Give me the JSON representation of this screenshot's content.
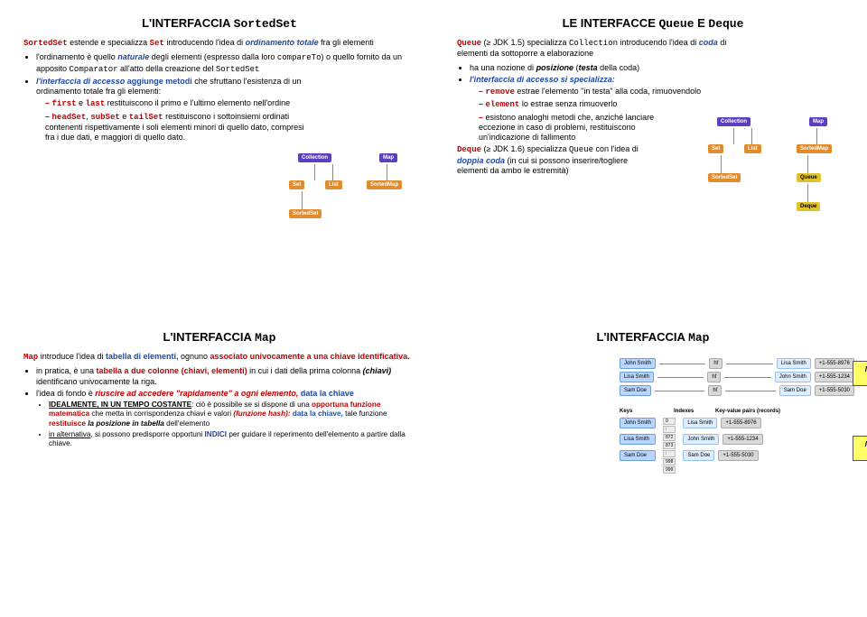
{
  "q1": {
    "title_a": "L'INTERFACCIA ",
    "title_b": "SortedSet",
    "p1_a": "SortedSet",
    "p1_b": " estende e specializza ",
    "p1_c": "Set",
    "p1_d": " introducendo l'idea di ",
    "p1_e": "ordinamento totale",
    "p1_f": " fra gli elementi",
    "b1_a": "l'ordinamento è quello ",
    "b1_b": "naturale",
    "b1_c": " degli elementi (espresso dalla loro ",
    "b1_d": "compareTo",
    "b1_e": ") o quello fornito da un apposito ",
    "b1_f": "Comparator",
    "b1_g": " all'atto della creazione del ",
    "b1_h": "SortedSet",
    "b2_a": "l'interfaccia di accesso",
    "b2_b": " aggiunge metodi ",
    "b2_c": "che sfruttano l'esistenza di un ordinamento totale fra gli elementi:",
    "d1_a": "first",
    "d1_b": " e ",
    "d1_c": "last",
    "d1_d": " restituiscono il primo e l'ultimo elemento nell'ordine",
    "d2_a": "headSet",
    "d2_b": ", ",
    "d2_c": "subSet",
    "d2_d": " e ",
    "d2_e": "tailSet",
    "d2_f": " restituiscono i sottoinsiemi ordinati contenenti rispettivamente i soli elementi minori di quello dato, compresi fra i due dati, e maggiori di quello dato.",
    "nodes": {
      "collection": "Collection",
      "map": "Map",
      "set": "Set",
      "list": "List",
      "sortedmap": "SortedMap",
      "sortedset": "SortedSet"
    },
    "col": {
      "purple": "#5b3fbf",
      "orange": "#e08b2c"
    }
  },
  "q2": {
    "title_a": "LE INTERFACCE ",
    "title_b": "Queue",
    "title_c": " E ",
    "title_d": "Deque",
    "p1_a": "Queue",
    "p1_b": " (≥ JDK 1.5) specializza ",
    "p1_c": "Collection",
    "p1_d": " introducendo l'idea di ",
    "p1_e": "coda",
    "p1_f": " di elementi da sottoporre a elaborazione",
    "b1_a": "ha una nozione di ",
    "b1_b": "posizione",
    "b1_c": " (",
    "b1_d": "testa",
    "b1_e": " della coda)",
    "b2": "l'interfaccia di accesso si specializza:",
    "d1_a": "remove",
    "d1_b": " estrae l'elemento \"in testa\" alla coda, rimuovendolo",
    "d2_a": "element",
    "d2_b": " lo estrae senza rimuoverlo",
    "d3": "esistono analoghi metodi che, anziché lanciare eccezione in caso di problemi, restituiscono un'indicazione di fallimento",
    "p2_a": "Deque",
    "p2_b": " (≥ JDK 1.6) specializza ",
    "p2_c": "Queue",
    "p2_d": " con l'idea di ",
    "p2_e": "doppia coda",
    "p2_f": " (in cui si possono inserire/togliere elementi da ambo le estremità)",
    "nodes": {
      "collection": "Collection",
      "map": "Map",
      "set": "Set",
      "list": "List",
      "sortedmap": "SortedMap",
      "sortedset": "SortedSet",
      "queue": "Queue",
      "deque": "Deque"
    }
  },
  "q3": {
    "title_a": "L'INTERFACCIA ",
    "title_b": "Map",
    "p1_a": "Map",
    "p1_b": " introduce l'idea di ",
    "p1_c": "tabella di elementi,",
    "p1_d": " ognuno ",
    "p1_e": "associato univocamente a una chiave identificativa.",
    "b1_a": "in pratica, è una ",
    "b1_b": "tabella a due colonne (chiavi, elementi)",
    "b1_c": " in cui i dati della prima colonna ",
    "b1_d": "(chiavi)",
    "b1_e": " identificano univocamente la riga.",
    "b2_a": "l'idea di fondo è ",
    "b2_b": "riuscire ad accedere \"rapidamente\" a ogni elemento,",
    "b2_c": " data la chiave",
    "s1_a": "IDEALMENTE, IN UN TEMPO COSTANTE",
    "s1_b": ": ciò è possibile se si dispone di una ",
    "s1_c": "opportuna funzione matematica",
    "s1_d": " che metta in corrispondenza chiavi e valori ",
    "s1_e": "(funzione hash):",
    "s1_f": " data la chiave,",
    "s1_g": " tale funzione ",
    "s1_h": "restituisce ",
    "s1_i": "la posizione in tabella",
    "s1_j": " dell'elemento",
    "s2_a": "in alternativa",
    "s2_b": ", si possono predisporre opportuni ",
    "s2_c": "INDICI",
    "s2_d": " per guidare il reperimento dell'elemento a partire dalla chiave."
  },
  "q4": {
    "title_a": "L'INTERFACCIA ",
    "title_b": "Map",
    "rows": [
      {
        "k": "John Smith",
        "hf": "hf",
        "v": "Lisa Smith",
        "p": "+1-555-8976"
      },
      {
        "k": "Lisa Smith",
        "hf": "hf",
        "v": "John Smith",
        "p": "+1-555-1234"
      },
      {
        "k": "Sam Doe",
        "hf": "hf",
        "v": "Sam Doe",
        "p": "+1-555-5030"
      }
    ],
    "note1": "Mappe basate su funzioni hash",
    "labels": {
      "keys": "Keys",
      "indexes": "Indexes",
      "pairs": "Key-value pairs (records)"
    },
    "rows2": [
      {
        "k": "John Smith",
        "v": "Lisa Smith",
        "p": "+1-555-8976"
      },
      {
        "k": "Lisa Smith",
        "v": "John Smith",
        "p": "+1-555-1234"
      },
      {
        "k": "Sam Doe",
        "v": "Sam Doe",
        "p": "+1-555-5030"
      }
    ],
    "idx": [
      "0",
      ":",
      "872",
      "873",
      ":",
      "998",
      "999"
    ],
    "note2": "Mappe basate su indici"
  }
}
